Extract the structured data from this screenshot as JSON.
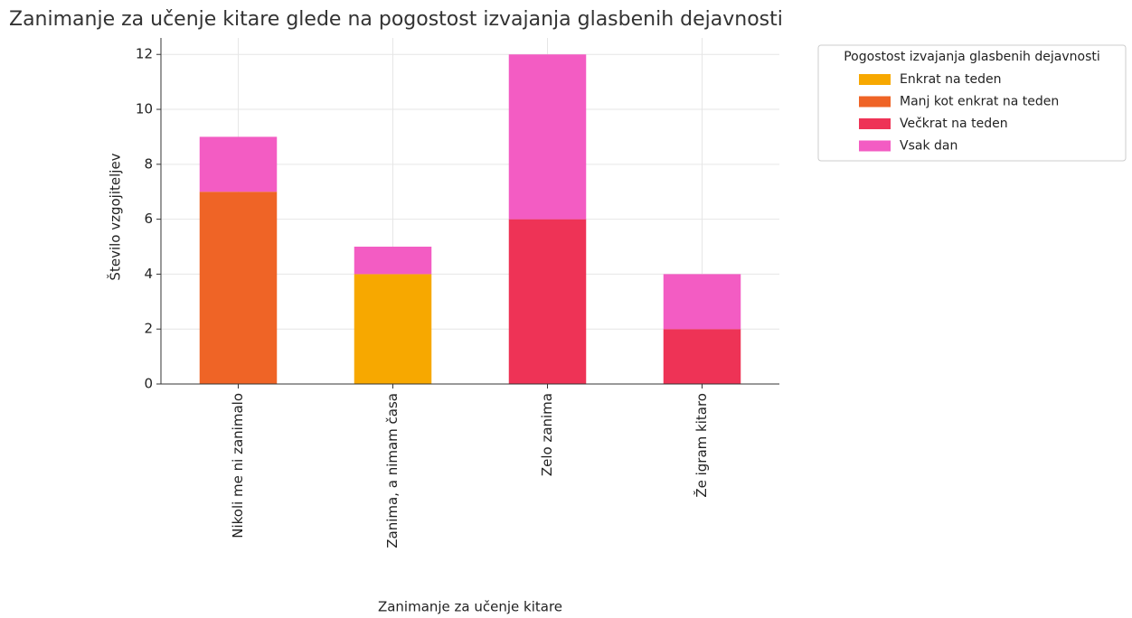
{
  "chart_data": {
    "type": "stacked_bar",
    "title": "Zanimanje za učenje kitare glede na pogostost izvajanja glasbenih dejavnosti",
    "x_label": "Zanimanje za učenje kitare",
    "y_label": "Število vzgojiteljev",
    "categories": [
      "Nikoli me ni zanimalo",
      "Zanima, a nimam časa",
      "Zelo zanima",
      "Že igram kitaro"
    ],
    "series": [
      {
        "name": "Enkrat na teden",
        "color": "#f7a800",
        "values": [
          0,
          4,
          0,
          0
        ]
      },
      {
        "name": "Manj kot enkrat na teden",
        "color": "#ef6426",
        "values": [
          7,
          0,
          0,
          0
        ]
      },
      {
        "name": "Večkrat na teden",
        "color": "#ee3356",
        "values": [
          0,
          0,
          6,
          2
        ]
      },
      {
        "name": "Vsak dan",
        "color": "#f35cc3",
        "values": [
          2,
          1,
          6,
          2
        ]
      }
    ],
    "legend_title": "Pogostost izvajanja glasbenih dejavnosti",
    "legend_position": "upper right outside",
    "ylim": [
      0,
      12.6
    ],
    "yticks": [
      0,
      2,
      4,
      6,
      8,
      10,
      12
    ],
    "grid": true
  }
}
